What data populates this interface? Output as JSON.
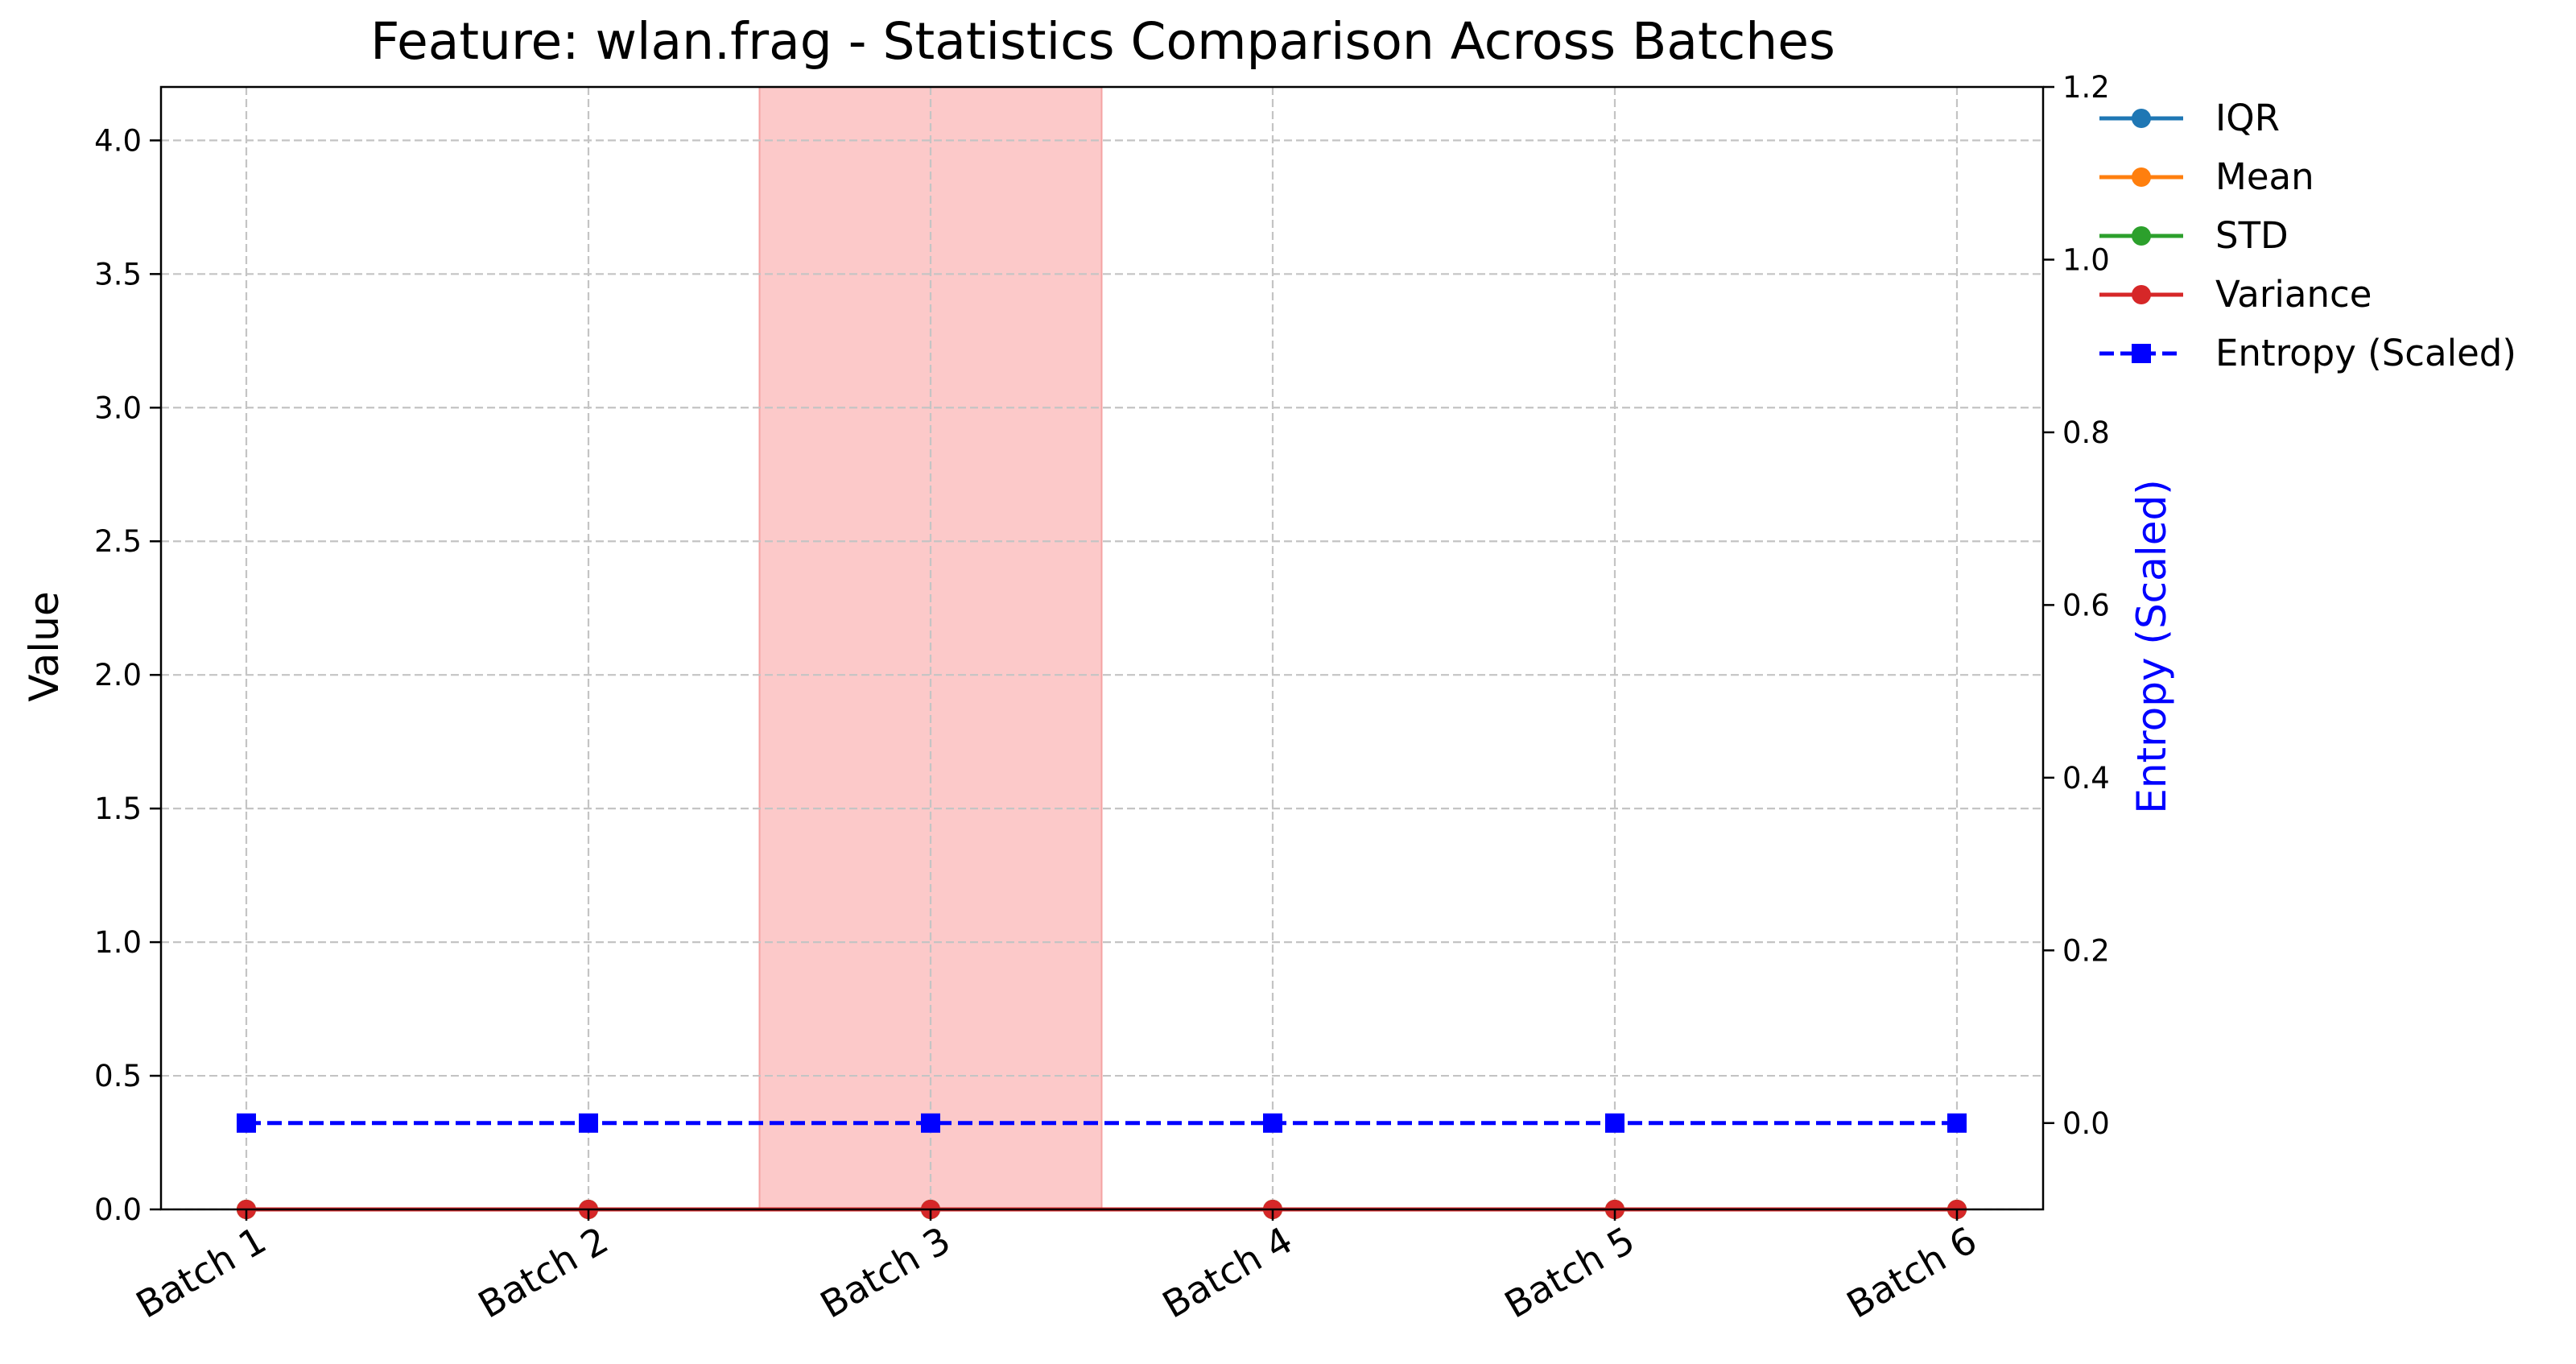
{
  "chart_data": {
    "type": "line",
    "title": "Feature: wlan.frag - Statistics Comparison Across Batches",
    "xlabel": "",
    "ylabel": "Value",
    "y2label": "Entropy (Scaled)",
    "categories": [
      "Batch 1",
      "Batch 2",
      "Batch 3",
      "Batch 4",
      "Batch 5",
      "Batch 6"
    ],
    "ylim": [
      0,
      4.2
    ],
    "yticks": [
      0.0,
      0.5,
      1.0,
      1.5,
      2.0,
      2.5,
      3.0,
      3.5,
      4.0
    ],
    "ytick_labels": [
      "0.0",
      "0.5",
      "1.0",
      "1.5",
      "2.0",
      "2.5",
      "3.0",
      "3.5",
      "4.0"
    ],
    "y2lim": [
      -0.1,
      1.2
    ],
    "y2ticks": [
      0.0,
      0.2,
      0.4,
      0.6,
      0.8,
      1.0,
      1.2
    ],
    "y2tick_labels": [
      "0.0",
      "0.2",
      "0.4",
      "0.6",
      "0.8",
      "1.0",
      "1.2"
    ],
    "grid": true,
    "legend_position": "outside-top-right",
    "highlight_category": "Batch 3",
    "highlight_color": "#fcc9c9",
    "series": [
      {
        "name": "IQR",
        "axis": "left",
        "values": [
          0,
          0,
          0,
          0,
          0,
          0
        ],
        "color": "#1f77b4",
        "marker": "circle",
        "dashed": false
      },
      {
        "name": "Mean",
        "axis": "left",
        "values": [
          0,
          0,
          0,
          0,
          0,
          0
        ],
        "color": "#ff7f0e",
        "marker": "circle",
        "dashed": false
      },
      {
        "name": "STD",
        "axis": "left",
        "values": [
          0,
          0,
          0,
          0,
          0,
          0
        ],
        "color": "#2ca02c",
        "marker": "circle",
        "dashed": false
      },
      {
        "name": "Variance",
        "axis": "left",
        "values": [
          0,
          0,
          0,
          0,
          0,
          0
        ],
        "color": "#d62728",
        "marker": "circle",
        "dashed": false
      },
      {
        "name": "Entropy (Scaled)",
        "axis": "right",
        "values": [
          0,
          0,
          0,
          0,
          0,
          0
        ],
        "color": "#0000ff",
        "marker": "square",
        "dashed": true
      }
    ]
  }
}
